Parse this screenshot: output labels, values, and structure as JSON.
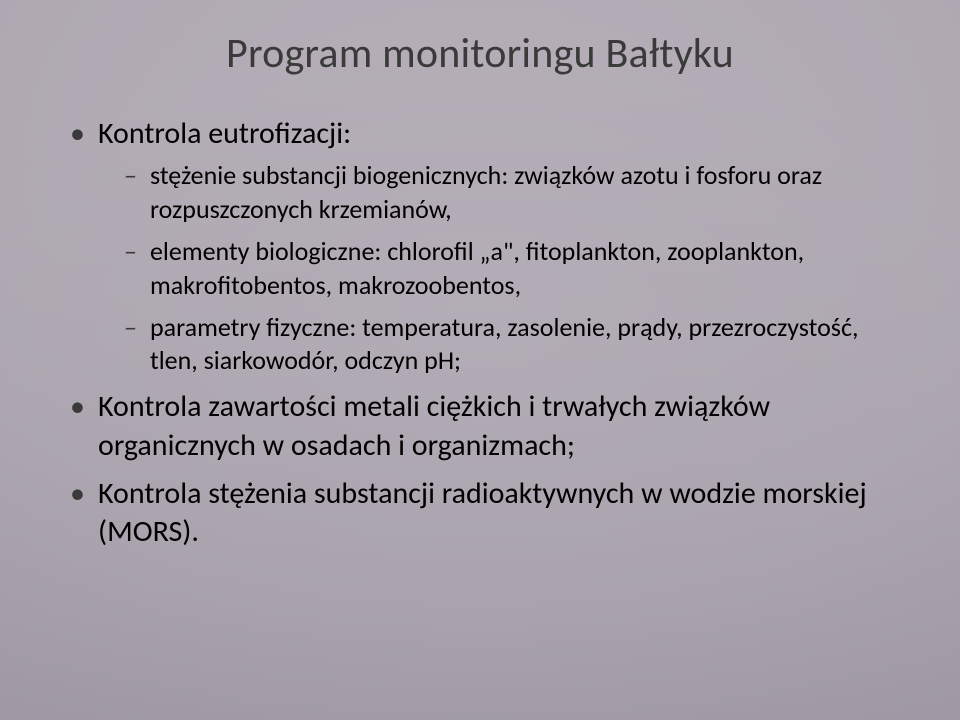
{
  "slide": {
    "background_gradient_colors": [
      "#b1aab4",
      "#ada6b0",
      "#a9a2ad",
      "#a59ea9",
      "#a29ba6"
    ],
    "vignette": true,
    "title": {
      "text": "Program monitoringu Bałtyku",
      "color": "#3a3a3a",
      "fontsize": 42,
      "fontweight": 400,
      "align": "center"
    },
    "bullet_level1": {
      "marker": "•",
      "marker_color": "#3a3a3a",
      "fontsize": 30,
      "text_color": "#000000",
      "line_height": 1.28
    },
    "bullet_level2": {
      "marker": "–",
      "marker_color": "#3a3a3a",
      "fontsize": 26,
      "text_color": "#000000",
      "line_height": 1.3
    },
    "items": [
      {
        "text": "Kontrola eutrofizacji:",
        "sub": [
          {
            "text": "stężenie substancji biogenicznych: związków azotu i fosforu oraz rozpuszczonych krzemianów,"
          },
          {
            "text": "elementy biologiczne: chlorofil „a\", fitoplankton, zooplankton, makrofitobentos, makrozoobentos,"
          },
          {
            "text": "parametry fizyczne: temperatura, zasolenie, prądy, przezroczystość, tlen, siarkowodór, odczyn pH;"
          }
        ]
      },
      {
        "text": "Kontrola zawartości metali ciężkich i trwałych związków organicznych w osadach i organizmach;"
      },
      {
        "text": "Kontrola stężenia substancji radioaktywnych w wodzie morskiej (MORS)."
      }
    ]
  }
}
